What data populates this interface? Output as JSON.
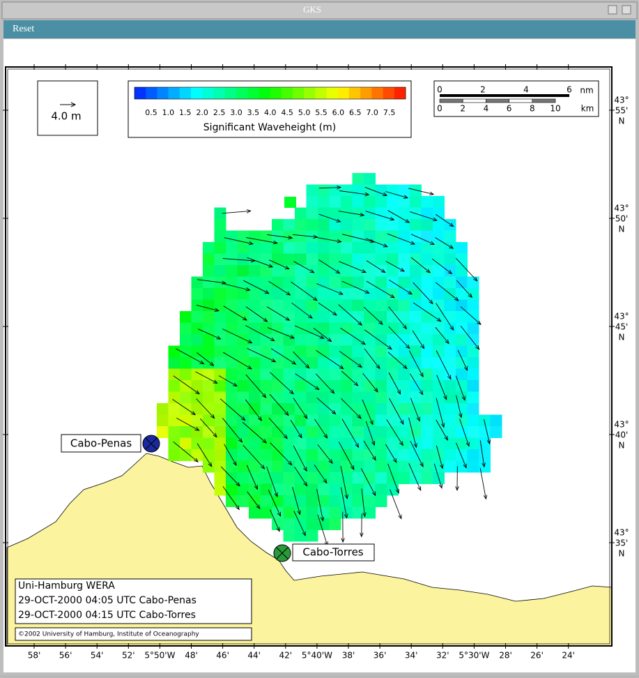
{
  "window": {
    "title": "GKS"
  },
  "menu": {
    "reset": "Reset"
  },
  "map": {
    "vector_legend": "4.0 m",
    "colorbar": {
      "ticks": [
        "0.5",
        "1.0",
        "1.5",
        "2.0",
        "2.5",
        "3.0",
        "3.5",
        "4.0",
        "4.5",
        "5.0",
        "5.5",
        "6.0",
        "6.5",
        "7.0",
        "7.5"
      ],
      "label": "Significant Waveheight (m)"
    },
    "scale": {
      "nm_ticks": [
        "0",
        "2",
        "4",
        "6"
      ],
      "nm_unit": "nm",
      "km_ticks": [
        "0",
        "2",
        "4",
        "6",
        "8",
        "10"
      ],
      "km_unit": "km"
    },
    "stations": [
      "Cabo-Penas",
      "Cabo-Torres"
    ],
    "info": [
      "Uni-Hamburg WERA",
      "29-OCT-2000 04:05 UTC Cabo-Penas",
      "29-OCT-2000 04:15 UTC Cabo-Torres"
    ],
    "copyright": "©2002 University of Hamburg, Institute of Oceanography",
    "lon_labels": [
      "58'",
      "56'",
      "54'",
      "52'",
      "5°50'W",
      "48'",
      "46'",
      "44'",
      "42'",
      "5°40'W",
      "38'",
      "36'",
      "34'",
      "32'",
      "5°30'W",
      "28'",
      "26'",
      "24'"
    ],
    "lat_labels": [
      [
        "43°",
        "55'",
        "N"
      ],
      [
        "43°",
        "50'",
        "N"
      ],
      [
        "43°",
        "45'",
        "N"
      ],
      [
        "43°",
        "40'",
        "N"
      ],
      [
        "43°",
        "35'",
        "N"
      ]
    ]
  }
}
